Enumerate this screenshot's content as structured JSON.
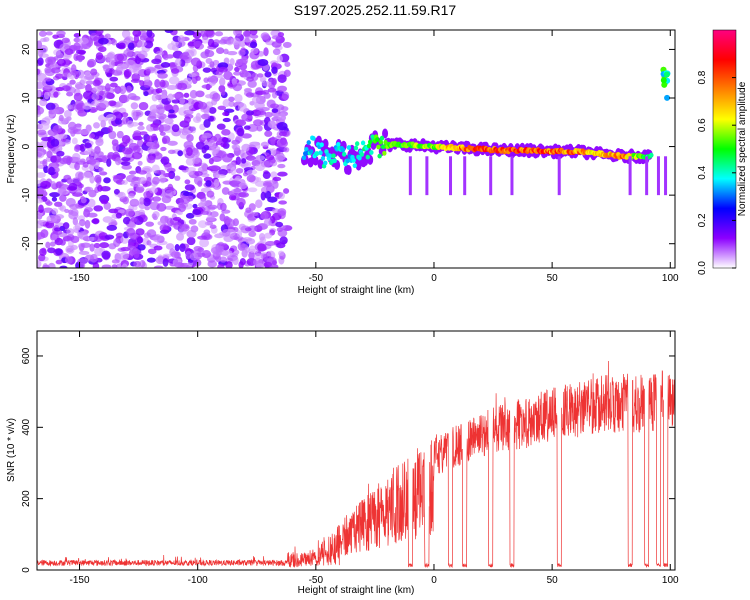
{
  "title": "S197.2025.252.11.59.R17",
  "chart_data": [
    {
      "type": "heatmap",
      "name": "spectrogram",
      "xlabel": "Height of straight line (km)",
      "ylabel": "Frequency (Hz)",
      "xlim": [
        -168,
        102
      ],
      "ylim": [
        -25,
        24
      ],
      "xticks": [
        -150,
        -100,
        -50,
        0,
        50,
        100
      ],
      "yticks": [
        -20,
        -10,
        0,
        10,
        20
      ],
      "colorbar": {
        "label": "Normalized spectral amplitude",
        "range": [
          0,
          1
        ],
        "ticks": [
          "0.0",
          "0.2",
          "0.4",
          "0.6",
          "0.8"
        ],
        "colors": [
          "#ffffff",
          "#8c00ff",
          "#0000ff",
          "#00ffff",
          "#00ff00",
          "#ffff00",
          "#ff8000",
          "#ff0000",
          "#ff0080"
        ]
      },
      "noise_region_x": [
        -168,
        -62
      ],
      "tone_track": [
        {
          "x": -55,
          "freq": 0.0,
          "amp": 0.4
        },
        {
          "x": -45,
          "freq": -2.0,
          "amp": 0.45
        },
        {
          "x": -35,
          "freq": -2.0,
          "amp": 0.4
        },
        {
          "x": -25,
          "freq": 0.0,
          "amp": 0.55
        },
        {
          "x": -15,
          "freq": 0.5,
          "amp": 0.6
        },
        {
          "x": 0,
          "freq": 0.0,
          "amp": 0.65
        },
        {
          "x": 10,
          "freq": -0.3,
          "amp": 0.85
        },
        {
          "x": 20,
          "freq": -0.5,
          "amp": 0.9
        },
        {
          "x": 30,
          "freq": -0.8,
          "amp": 0.92
        },
        {
          "x": 40,
          "freq": -0.8,
          "amp": 0.92
        },
        {
          "x": 50,
          "freq": -1.0,
          "amp": 0.88
        },
        {
          "x": 60,
          "freq": -1.0,
          "amp": 0.85
        },
        {
          "x": 70,
          "freq": -1.5,
          "amp": 0.75
        },
        {
          "x": 80,
          "freq": -2.0,
          "amp": 0.85
        },
        {
          "x": 92,
          "freq": -2.0,
          "amp": 0.45
        }
      ],
      "spur": {
        "x": 98,
        "freq": 13,
        "amp": 0.5
      }
    },
    {
      "type": "line",
      "name": "snr",
      "xlabel": "Height of straight line (km)",
      "ylabel": "SNR (10 * v/v)",
      "xlim": [
        -168,
        102
      ],
      "ylim": [
        0,
        670
      ],
      "xticks": [
        -150,
        -100,
        -50,
        0,
        50,
        100
      ],
      "yticks": [
        0,
        200,
        400,
        600
      ],
      "color": "#ee3333",
      "series": [
        {
          "name": "SNR",
          "x": [
            -168,
            -150,
            -100,
            -62,
            -55,
            -50,
            -45,
            -40,
            -35,
            -30,
            -25,
            -20,
            -15,
            -10,
            -5,
            0,
            5,
            10,
            15,
            20,
            25,
            30,
            35,
            40,
            45,
            50,
            55,
            60,
            65,
            70,
            75,
            80,
            85,
            90,
            95,
            100
          ],
          "y": [
            18,
            18,
            18,
            20,
            40,
            80,
            100,
            130,
            170,
            200,
            230,
            270,
            300,
            330,
            360,
            380,
            390,
            410,
            430,
            440,
            460,
            470,
            480,
            490,
            500,
            510,
            520,
            530,
            540,
            545,
            550,
            550,
            550,
            550,
            560,
            570
          ]
        }
      ],
      "dropouts_x": [
        -10,
        -3,
        7,
        13,
        24,
        33,
        53,
        83,
        90,
        95,
        98
      ]
    }
  ]
}
